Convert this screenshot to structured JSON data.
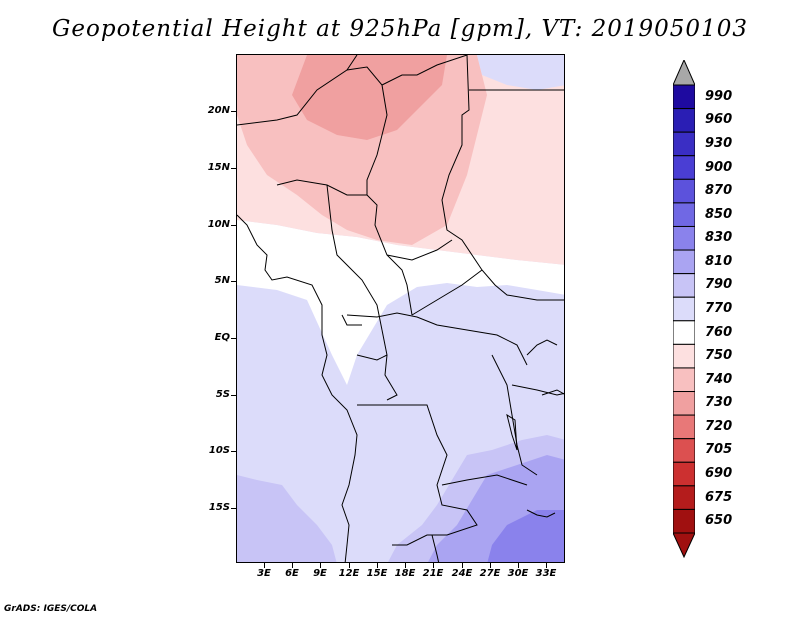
{
  "title": "Geopotential Height at 925hPa [gpm], VT: 2019050103",
  "credit": "GrADS: IGES/COLA",
  "axes": {
    "lat_labels": [
      "20N",
      "15N",
      "10N",
      "5N",
      "EQ",
      "5S",
      "10S",
      "15S"
    ],
    "lon_labels": [
      "3E",
      "6E",
      "9E",
      "12E",
      "15E",
      "18E",
      "21E",
      "24E",
      "27E",
      "30E",
      "33E"
    ]
  },
  "colorbar": {
    "levels": [
      "990",
      "960",
      "930",
      "900",
      "870",
      "850",
      "830",
      "810",
      "790",
      "770",
      "760",
      "750",
      "740",
      "730",
      "720",
      "705",
      "690",
      "675",
      "650"
    ],
    "colors": [
      "#1e0aa0",
      "#2a1eb4",
      "#3a2ec4",
      "#4a3ed4",
      "#5c52dc",
      "#7068e4",
      "#8a82ec",
      "#aaa4f2",
      "#c8c4f6",
      "#dcdcfa",
      "#ffffff",
      "#fde0e0",
      "#f8c0c0",
      "#f0a0a0",
      "#e87878",
      "#dc5050",
      "#cc3030",
      "#b41c1c",
      "#a01010"
    ],
    "top_arrow_color": "#a8a8a8",
    "bottom_arrow_color": "#a01010"
  },
  "field_colors": {
    "c790": "#c8c4f6",
    "c770": "#dcdcfa",
    "c760": "#ffffff",
    "c750": "#fde0e0",
    "c740": "#f8c0c0",
    "c730": "#f0a0a0",
    "c810": "#aaa4f2",
    "c830": "#8a82ec"
  }
}
